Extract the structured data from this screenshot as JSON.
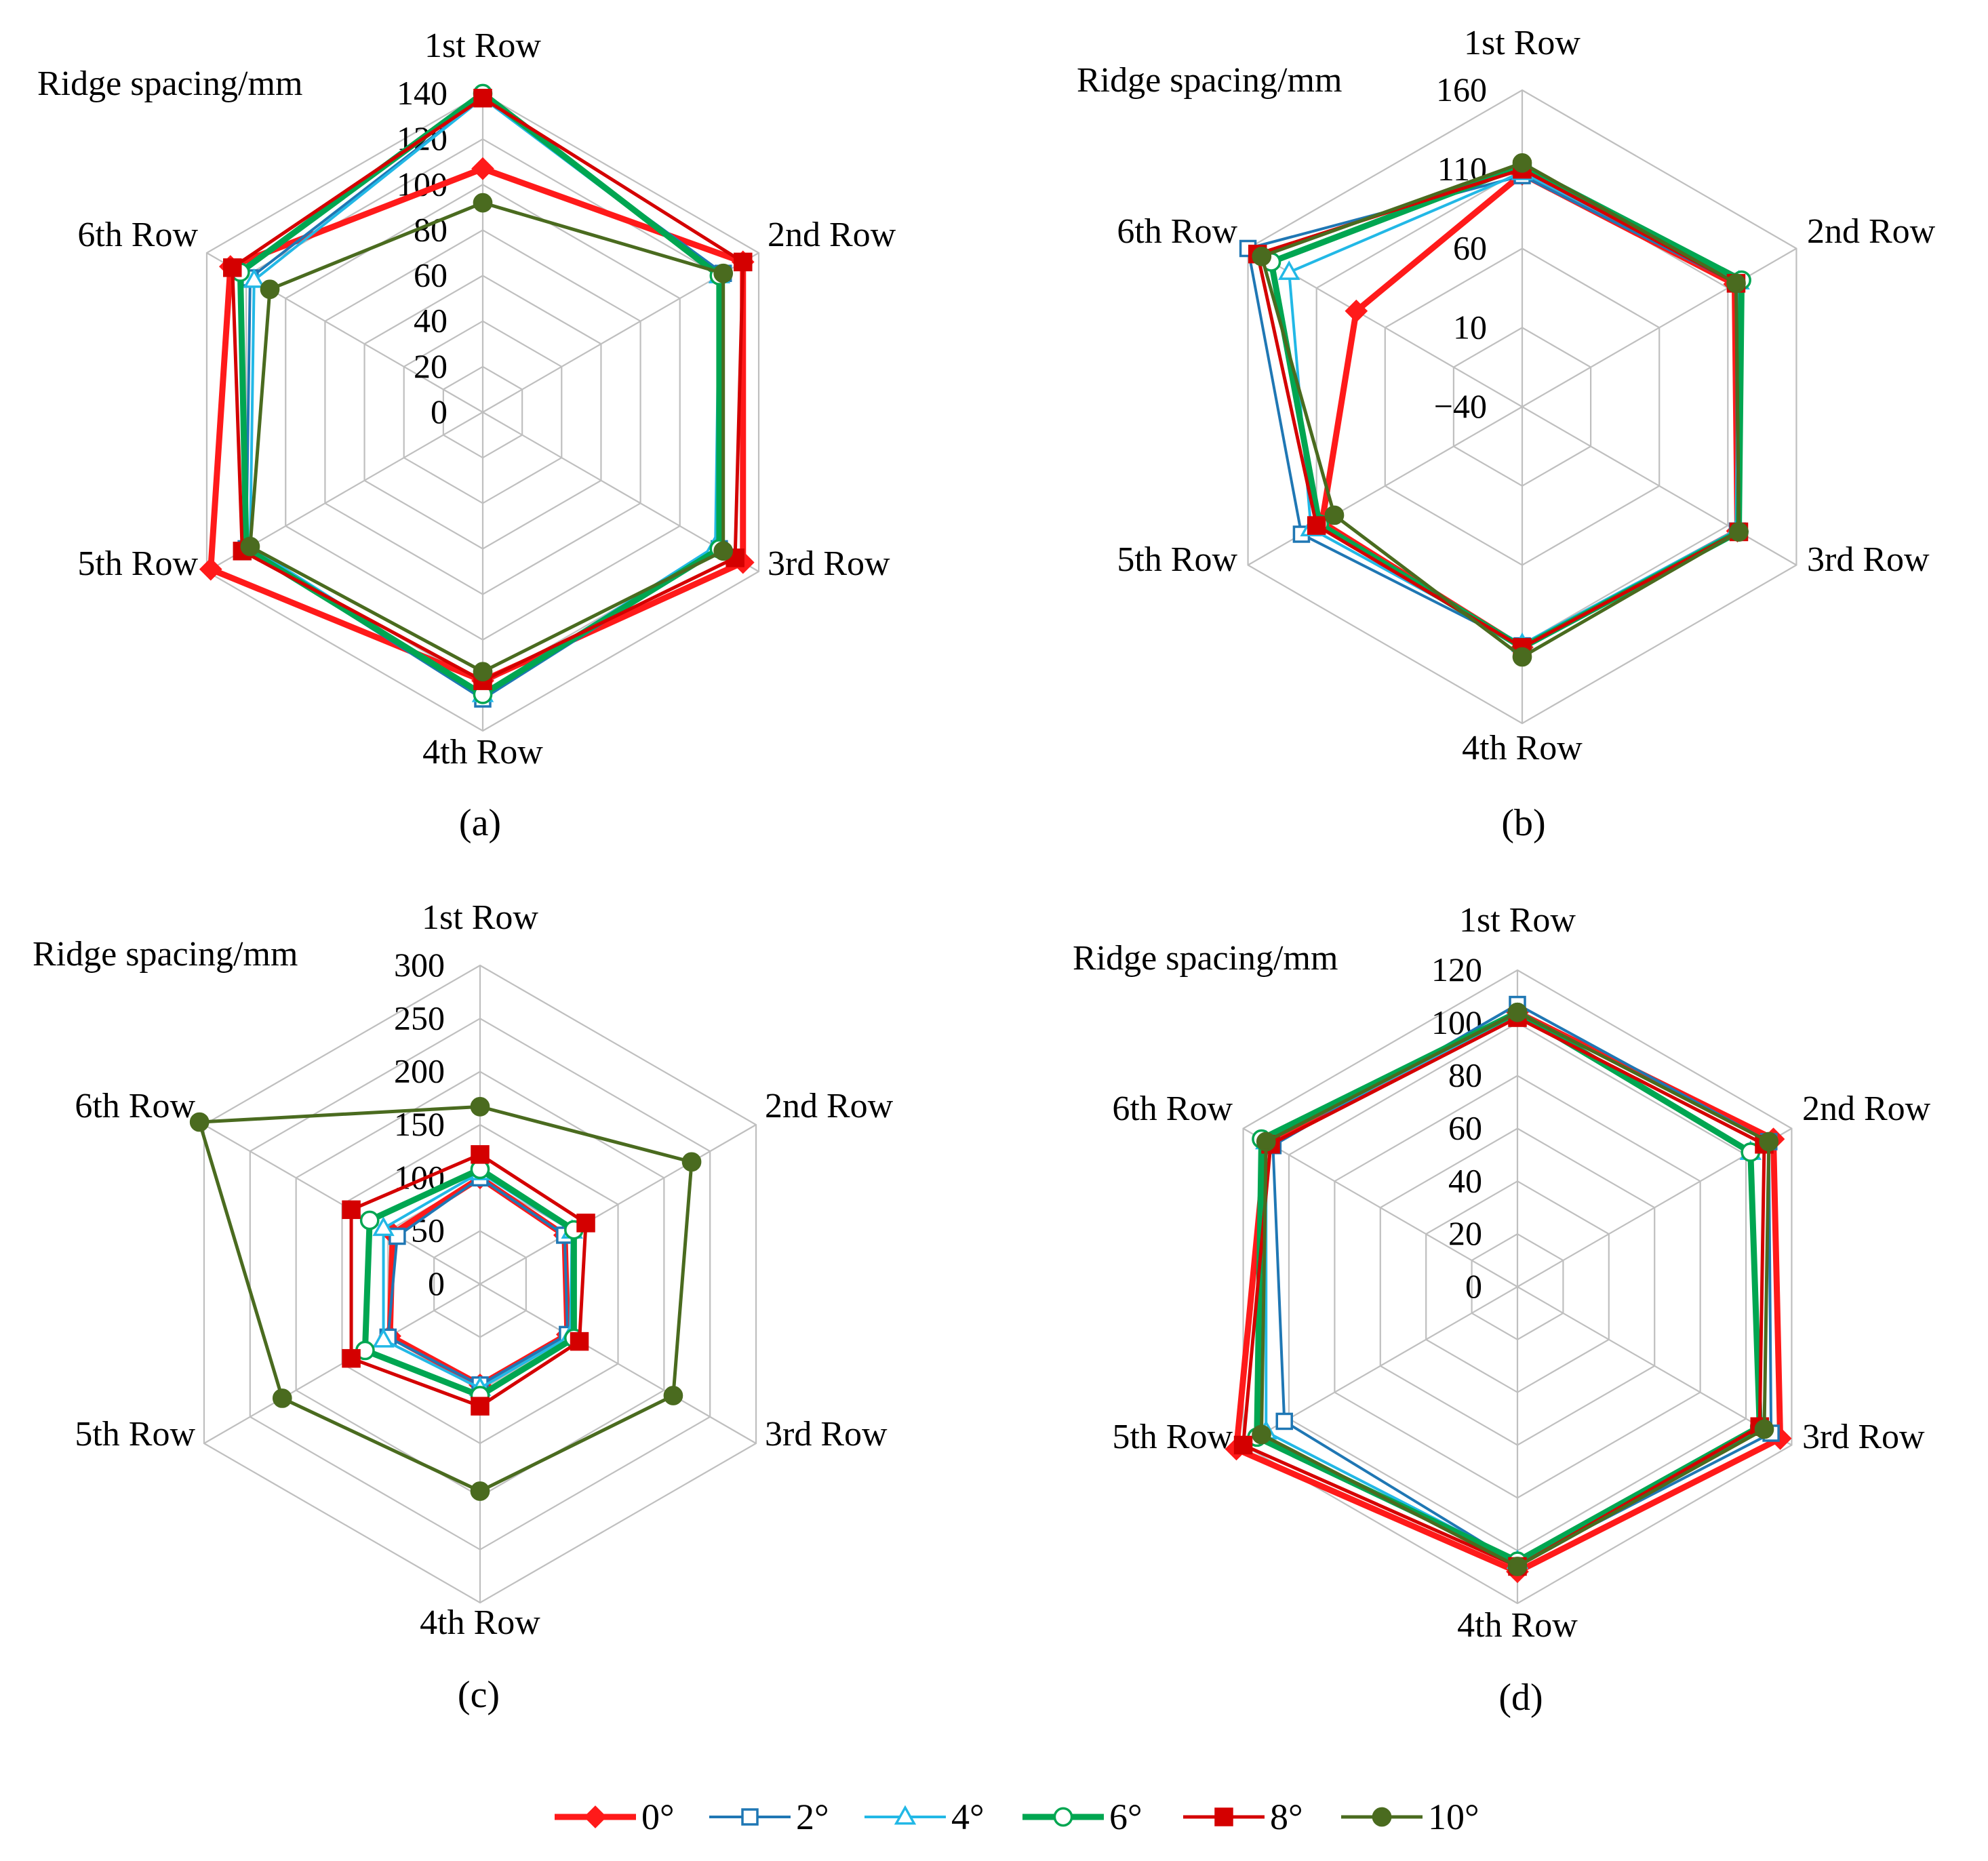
{
  "colors": {
    "s0": "#ff1a1a",
    "s2": "#1f77b4",
    "s4": "#22b8e6",
    "s6": "#00a651",
    "s8": "#d40000",
    "s10": "#4a6b1f"
  },
  "legend": [
    {
      "key": "s0",
      "label": "0°"
    },
    {
      "key": "s2",
      "label": "2°"
    },
    {
      "key": "s4",
      "label": "4°"
    },
    {
      "key": "s6",
      "label": "6°"
    },
    {
      "key": "s8",
      "label": "8°"
    },
    {
      "key": "s10",
      "label": "10°"
    }
  ],
  "chart_data": [
    {
      "type": "radar",
      "panel_label": "(a)",
      "axis_title": "Ridge spacing/mm",
      "categories": [
        "1st Row",
        "2nd Row",
        "3rd Row",
        "4th Row",
        "5th Row",
        "6th Row"
      ],
      "ylim": [
        0,
        140
      ],
      "ticks": [
        "0",
        "20",
        "40",
        "60",
        "80",
        "100",
        "120",
        "140"
      ],
      "series": [
        {
          "name": "0°",
          "values": [
            107,
            132,
            132,
            118,
            138,
            128
          ]
        },
        {
          "name": "2°",
          "values": [
            138,
            122,
            120,
            126,
            120,
            118
          ]
        },
        {
          "name": "4°",
          "values": [
            138,
            120,
            118,
            124,
            118,
            116
          ]
        },
        {
          "name": "6°",
          "values": [
            140,
            120,
            120,
            124,
            120,
            123
          ]
        },
        {
          "name": "8°",
          "values": [
            138,
            132,
            128,
            118,
            122,
            127
          ]
        },
        {
          "name": "10°",
          "values": [
            92,
            122,
            122,
            114,
            118,
            108
          ]
        }
      ]
    },
    {
      "type": "radar",
      "panel_label": "(b)",
      "axis_title": "Ridge spacing/mm",
      "categories": [
        "1st Row",
        "2nd Row",
        "3rd Row",
        "4th Row",
        "5th Row",
        "6th Row"
      ],
      "ylim": [
        -40,
        160
      ],
      "ticks": [
        "−40",
        "10",
        "60",
        "110",
        "160"
      ],
      "series": [
        {
          "name": "0°",
          "values": [
            107,
            115,
            117,
            112,
            106,
            81
          ]
        },
        {
          "name": "2°",
          "values": [
            106,
            116,
            117,
            111,
            121,
            160
          ]
        },
        {
          "name": "4°",
          "values": [
            108,
            118,
            116,
            110,
            114,
            130
          ]
        },
        {
          "name": "6°",
          "values": [
            112,
            120,
            118,
            112,
            108,
            143
          ]
        },
        {
          "name": "8°",
          "values": [
            110,
            116,
            118,
            112,
            110,
            153
          ]
        },
        {
          "name": "10°",
          "values": [
            114,
            116,
            118,
            118,
            97,
            150
          ]
        }
      ]
    },
    {
      "type": "radar",
      "panel_label": "(c)",
      "axis_title": "Ridge spacing/mm",
      "categories": [
        "1st Row",
        "2nd Row",
        "3rd Row",
        "4th Row",
        "5th Row",
        "6th Row"
      ],
      "ylim": [
        0,
        300
      ],
      "ticks": [
        "0",
        "50",
        "100",
        "150",
        "200",
        "250",
        "300"
      ],
      "series": [
        {
          "name": "0°",
          "values": [
            100,
            92,
            95,
            95,
            98,
            95
          ]
        },
        {
          "name": "2°",
          "values": [
            100,
            92,
            95,
            95,
            100,
            90
          ]
        },
        {
          "name": "4°",
          "values": [
            105,
            100,
            98,
            98,
            105,
            105
          ]
        },
        {
          "name": "6°",
          "values": [
            108,
            102,
            102,
            105,
            125,
            120
          ]
        },
        {
          "name": "8°",
          "values": [
            122,
            115,
            108,
            115,
            140,
            140
          ]
        },
        {
          "name": "10°",
          "values": [
            167,
            230,
            210,
            195,
            215,
            305
          ]
        }
      ]
    },
    {
      "type": "radar",
      "panel_label": "(d)",
      "axis_title": "Ridge spacing/mm",
      "categories": [
        "1st Row",
        "2nd Row",
        "3rd Row",
        "4th Row",
        "5th Row",
        "6th Row"
      ],
      "ylim": [
        0,
        120
      ],
      "ticks": [
        "0",
        "20",
        "40",
        "60",
        "80",
        "100",
        "120"
      ],
      "series": [
        {
          "name": "0°",
          "values": [
            104,
            112,
            115,
            108,
            123,
            110
          ]
        },
        {
          "name": "2°",
          "values": [
            107,
            110,
            111,
            105,
            102,
            107
          ]
        },
        {
          "name": "4°",
          "values": [
            103,
            102,
            106,
            104,
            110,
            110
          ]
        },
        {
          "name": "6°",
          "values": [
            104,
            102,
            106,
            104,
            114,
            112
          ]
        },
        {
          "name": "8°",
          "values": [
            102,
            108,
            106,
            106,
            120,
            108
          ]
        },
        {
          "name": "10°",
          "values": [
            104,
            110,
            108,
            106,
            112,
            110
          ]
        }
      ]
    }
  ]
}
